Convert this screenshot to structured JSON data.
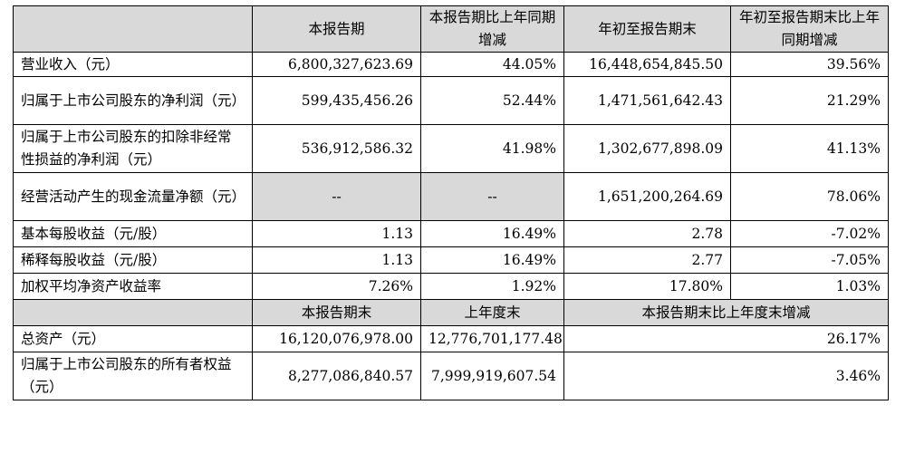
{
  "header": {
    "col1": "本报告期",
    "col2": "本报告期比上年同期增减",
    "col3": "年初至报告期末",
    "col4": "年初至报告期末比上年同期增减"
  },
  "rows": [
    {
      "label": "营业收入（元）",
      "v1": "6,800,327,623.69",
      "v2": "44.05%",
      "v3": "16,448,654,845.50",
      "v4": "39.56%"
    },
    {
      "label": "归属于上市公司股东的净利润（元）",
      "v1": "599,435,456.26",
      "v2": "52.44%",
      "v3": "1,471,561,642.43",
      "v4": "21.29%"
    },
    {
      "label": "归属于上市公司股东的扣除非经常性损益的净利润（元）",
      "v1": "536,912,586.32",
      "v2": "41.98%",
      "v3": "1,302,677,898.09",
      "v4": "41.13%"
    },
    {
      "label": "经营活动产生的现金流量净额（元）",
      "v1": "--",
      "v2": "--",
      "v3": "1,651,200,264.69",
      "v4": "78.06%"
    },
    {
      "label": "基本每股收益（元/股）",
      "v1": "1.13",
      "v2": "16.49%",
      "v3": "2.78",
      "v4": "-7.02%"
    },
    {
      "label": "稀释每股收益（元/股）",
      "v1": "1.13",
      "v2": "16.49%",
      "v3": "2.77",
      "v4": "-7.05%"
    },
    {
      "label": "加权平均净资产收益率",
      "v1": "7.26%",
      "v2": "1.92%",
      "v3": "17.80%",
      "v4": "1.03%"
    }
  ],
  "header2": {
    "col1": "本报告期末",
    "col2": "上年度末",
    "col3": "本报告期末比上年度末增减"
  },
  "rows2": [
    {
      "label": "总资产（元）",
      "v1": "16,120,076,978.00",
      "v2": "12,776,701,177.48",
      "v3": "26.17%"
    },
    {
      "label": "归属于上市公司股东的所有者权益（元）",
      "v1": "8,277,086,840.57",
      "v2": "7,999,919,607.54",
      "v3": "3.46%"
    }
  ]
}
